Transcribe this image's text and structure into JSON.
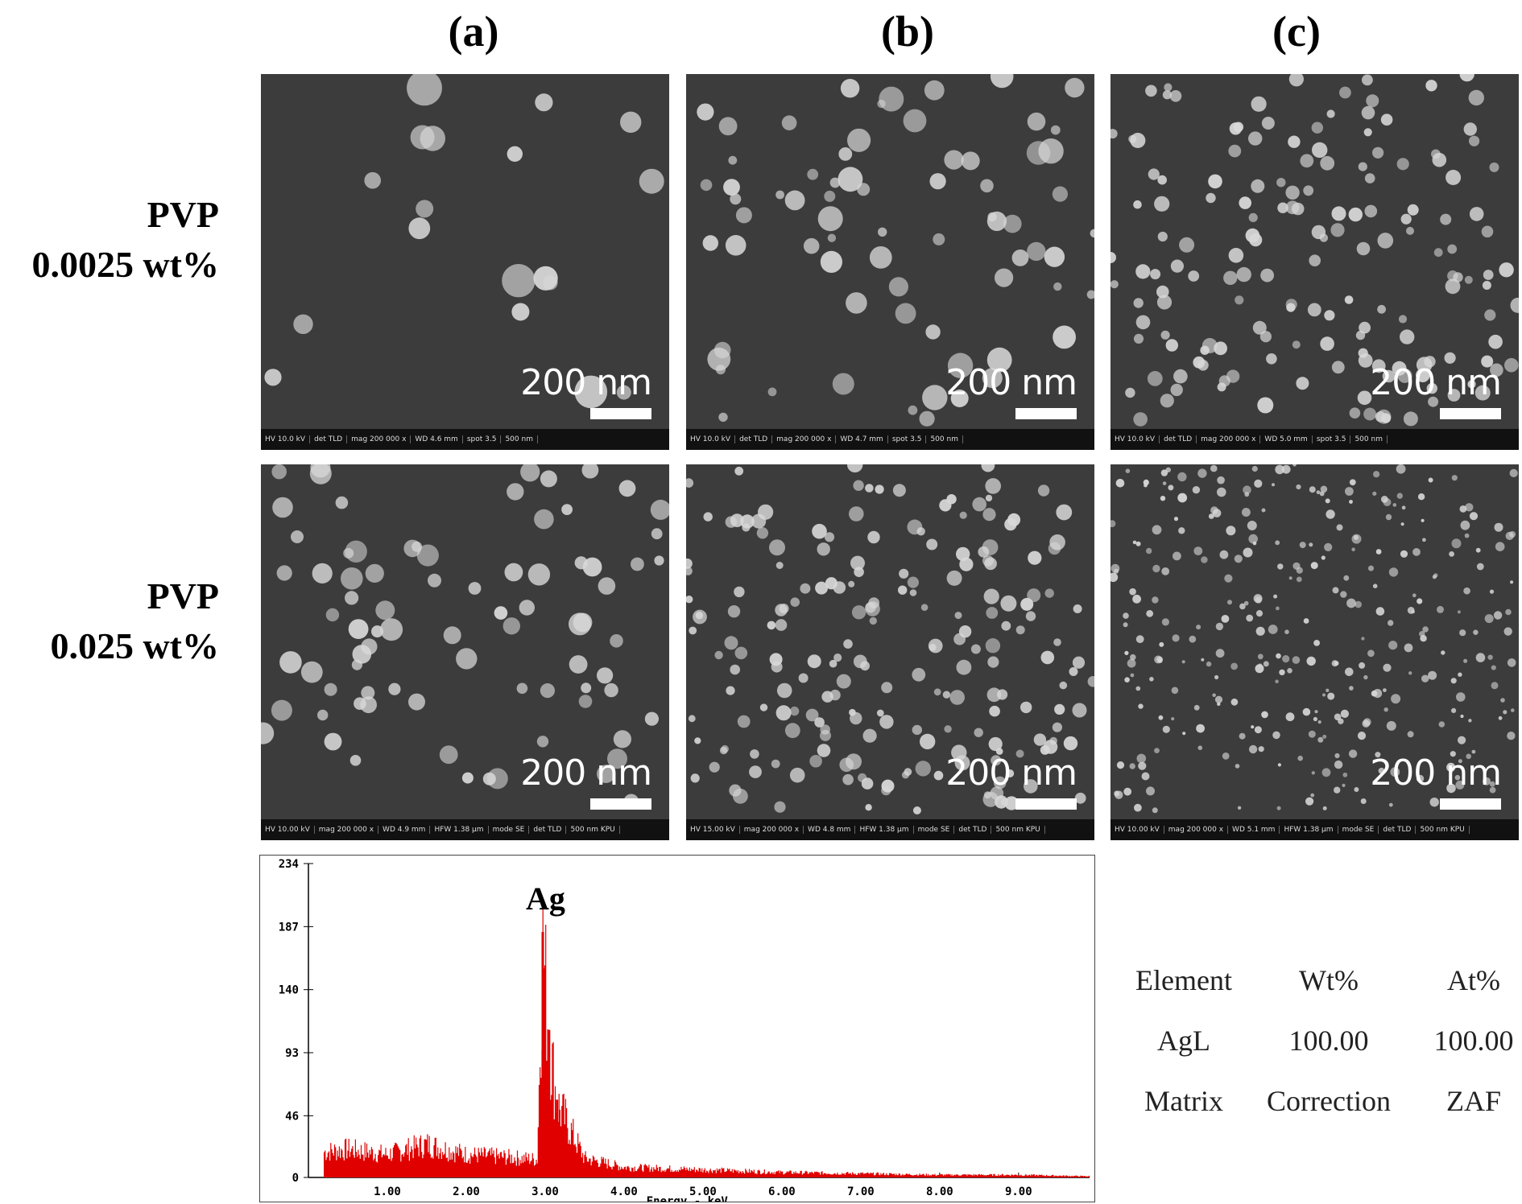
{
  "columns": [
    "(a)",
    "(b)",
    "(c)"
  ],
  "rows": [
    {
      "line1": "PVP",
      "line2": "0.0025 wt%"
    },
    {
      "line1": "PVP",
      "line2": "0.025 wt%"
    }
  ],
  "scale_label": "200 nm",
  "panels": [
    {
      "id": "a1",
      "databar": [
        "HV 10.0 kV",
        "det TLD",
        "mag 200 000 x",
        "WD 4.6 mm",
        "spot 3.5",
        "500 nm"
      ]
    },
    {
      "id": "b1",
      "databar": [
        "HV 10.0 kV",
        "det TLD",
        "mag 200 000 x",
        "WD 4.7 mm",
        "spot 3.5",
        "500 nm"
      ]
    },
    {
      "id": "c1",
      "databar": [
        "HV 10.0 kV",
        "det TLD",
        "mag 200 000 x",
        "WD 5.0 mm",
        "spot 3.5",
        "500 nm"
      ]
    },
    {
      "id": "a2",
      "databar": [
        "HV 10.00 kV",
        "mag 200 000 x",
        "WD 4.9 mm",
        "HFW 1.38 µm",
        "mode SE",
        "det TLD",
        "500 nm KPU"
      ]
    },
    {
      "id": "b2",
      "databar": [
        "HV 15.00 kV",
        "mag 200 000 x",
        "WD 4.8 mm",
        "HFW 1.38 µm",
        "mode SE",
        "det TLD",
        "500 nm KPU"
      ]
    },
    {
      "id": "c2",
      "databar": [
        "HV 10.00 kV",
        "mag 200 000 x",
        "WD 5.1 mm",
        "HFW 1.38 µm",
        "mode SE",
        "det TLD",
        "500 nm KPU"
      ]
    }
  ],
  "chart_data": {
    "type": "line",
    "title": "",
    "xlabel": "Energy - keV",
    "ylabel": "",
    "peak_annotation": "Ag",
    "y_ticks": [
      0,
      46,
      93,
      140,
      187,
      234
    ],
    "x_ticks": [
      "1.00",
      "2.00",
      "3.00",
      "4.00",
      "5.00",
      "6.00",
      "7.00",
      "8.00",
      "9.00"
    ],
    "xlim": [
      0,
      9.9
    ],
    "ylim": [
      0,
      234
    ],
    "x": [
      0.2,
      0.5,
      1.0,
      1.5,
      2.0,
      2.5,
      2.9,
      2.97,
      3.05,
      3.15,
      3.3,
      3.5,
      4.0,
      5.0,
      6.0,
      7.0,
      8.0,
      9.0,
      9.8
    ],
    "series": [
      {
        "values": [
          20,
          22,
          18,
          26,
          18,
          16,
          14,
          183,
          110,
          58,
          40,
          15,
          8,
          6,
          4,
          3,
          2,
          2,
          1
        ]
      }
    ]
  },
  "table": {
    "headers": [
      "Element",
      "Wt%",
      "At%"
    ],
    "rows": [
      [
        "AgL",
        "100.00",
        "100.00"
      ],
      [
        "Matrix",
        "Correction",
        "ZAF"
      ]
    ]
  },
  "colors": {
    "spectrum": "#e00000",
    "sem_bg": "#3c3c3c",
    "particle": "#d8d8d8"
  }
}
